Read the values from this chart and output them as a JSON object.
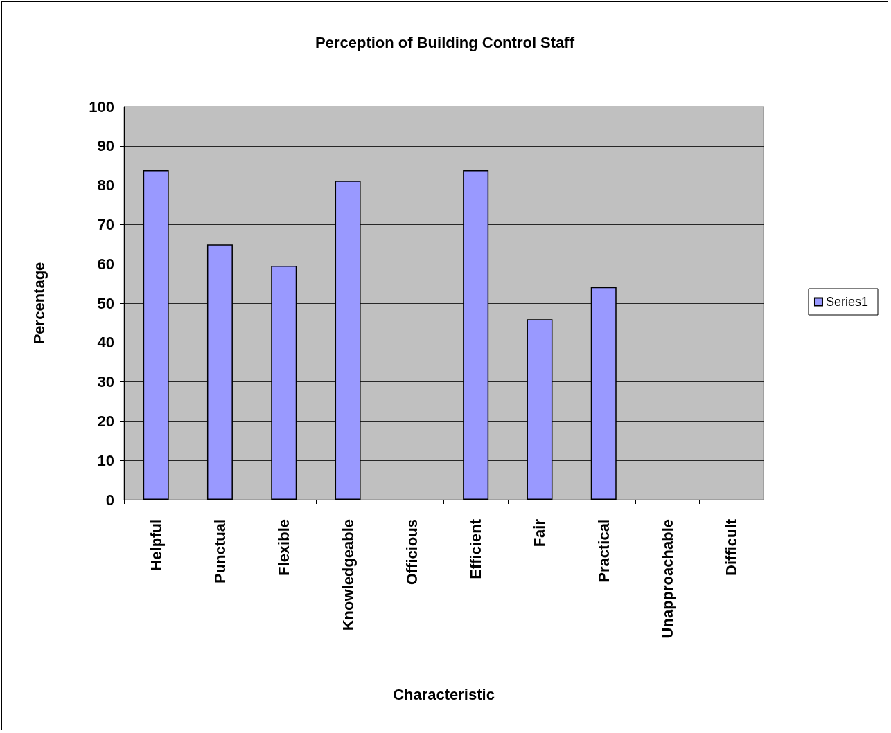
{
  "chart_data": {
    "type": "bar",
    "title": "Perception of Building Control Staff",
    "xlabel": "Characteristic",
    "ylabel": "Percentage",
    "categories": [
      "Helpful",
      "Punctual",
      "Flexible",
      "Knowledgeable",
      "Officious",
      "Efficient",
      "Fair",
      "Practical",
      "Unapproachable",
      "Difficult"
    ],
    "series": [
      {
        "name": "Series1",
        "color": "#9999ff",
        "values": [
          83.8,
          64.9,
          59.5,
          81.1,
          0,
          83.8,
          45.9,
          54.1,
          0,
          0
        ]
      }
    ],
    "ylim": [
      0,
      100
    ],
    "yticks": [
      0,
      10,
      20,
      30,
      40,
      50,
      60,
      70,
      80,
      90,
      100
    ],
    "grid": "y",
    "legend": "right"
  }
}
